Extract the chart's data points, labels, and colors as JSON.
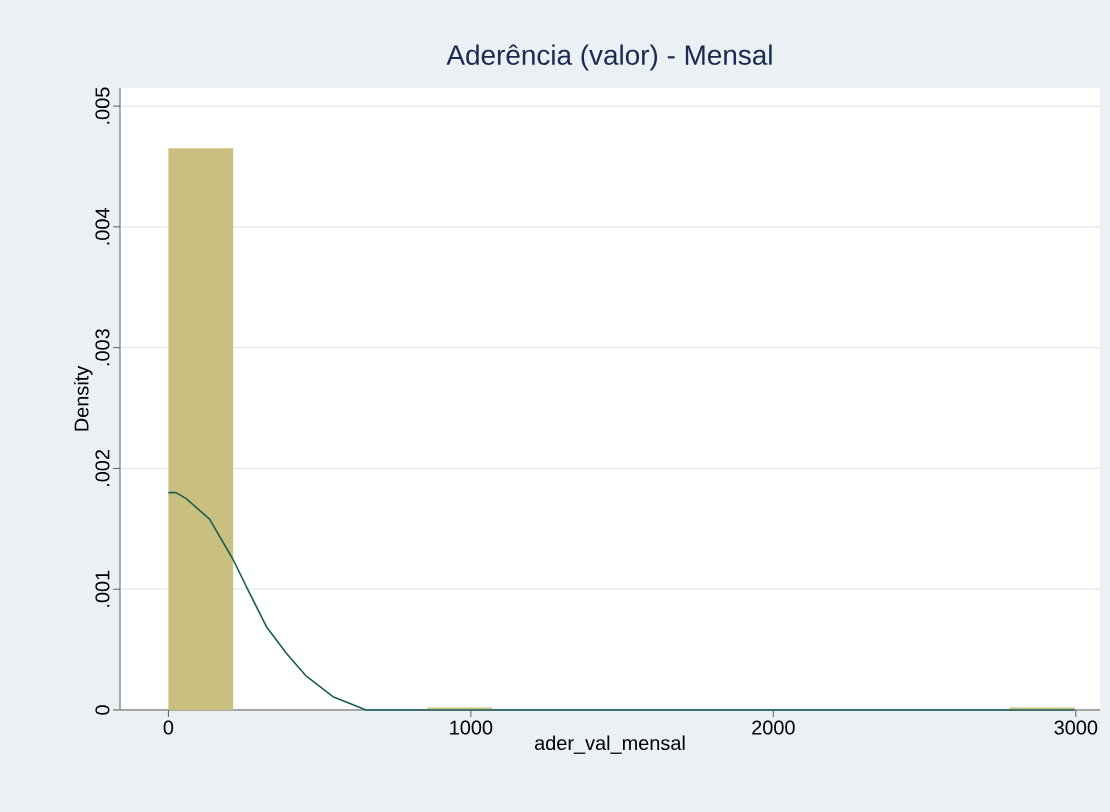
{
  "chart_data": {
    "type": "histogram",
    "title": "Aderência (valor) - Mensal",
    "xlabel": "ader_val_mensal",
    "ylabel": "Density",
    "bins": [
      0,
      214,
      428,
      642,
      856,
      1070,
      1284,
      1498,
      1712,
      1926,
      2140,
      2354,
      2568,
      2782,
      2996
    ],
    "series": [
      {
        "color": "#c9c07f",
        "values": [
          0.00465,
          0,
          0,
          0,
          2e-05,
          0,
          0,
          0,
          0,
          0,
          0,
          0,
          0,
          2e-05
        ]
      },
      {
        "type": "line",
        "color": "#1a5e55",
        "x": [
          0,
          25,
          59,
          136,
          213,
          268,
          324,
          390,
          456,
          544,
          654,
          764,
          1000,
          2000,
          2996
        ],
        "values": [
          0.0018,
          0.0018,
          0.00175,
          0.00158,
          0.00125,
          0.00097,
          0.00069,
          0.00047,
          0.00028,
          0.00011,
          0,
          0,
          0,
          0,
          0
        ]
      }
    ],
    "xlim": [
      -160,
      3080
    ],
    "ylim": [
      0,
      0.00515
    ],
    "xticks": [
      0,
      1000,
      2000,
      3000
    ],
    "yticks": [
      {
        "value": 0,
        "label": "0"
      },
      {
        "value": 0.001,
        "label": ".001"
      },
      {
        "value": 0.002,
        "label": ".002"
      },
      {
        "value": 0.003,
        "label": ".003"
      },
      {
        "value": 0.004,
        "label": ".004"
      },
      {
        "value": 0.005,
        "label": ".005"
      }
    ],
    "grid": "y"
  }
}
